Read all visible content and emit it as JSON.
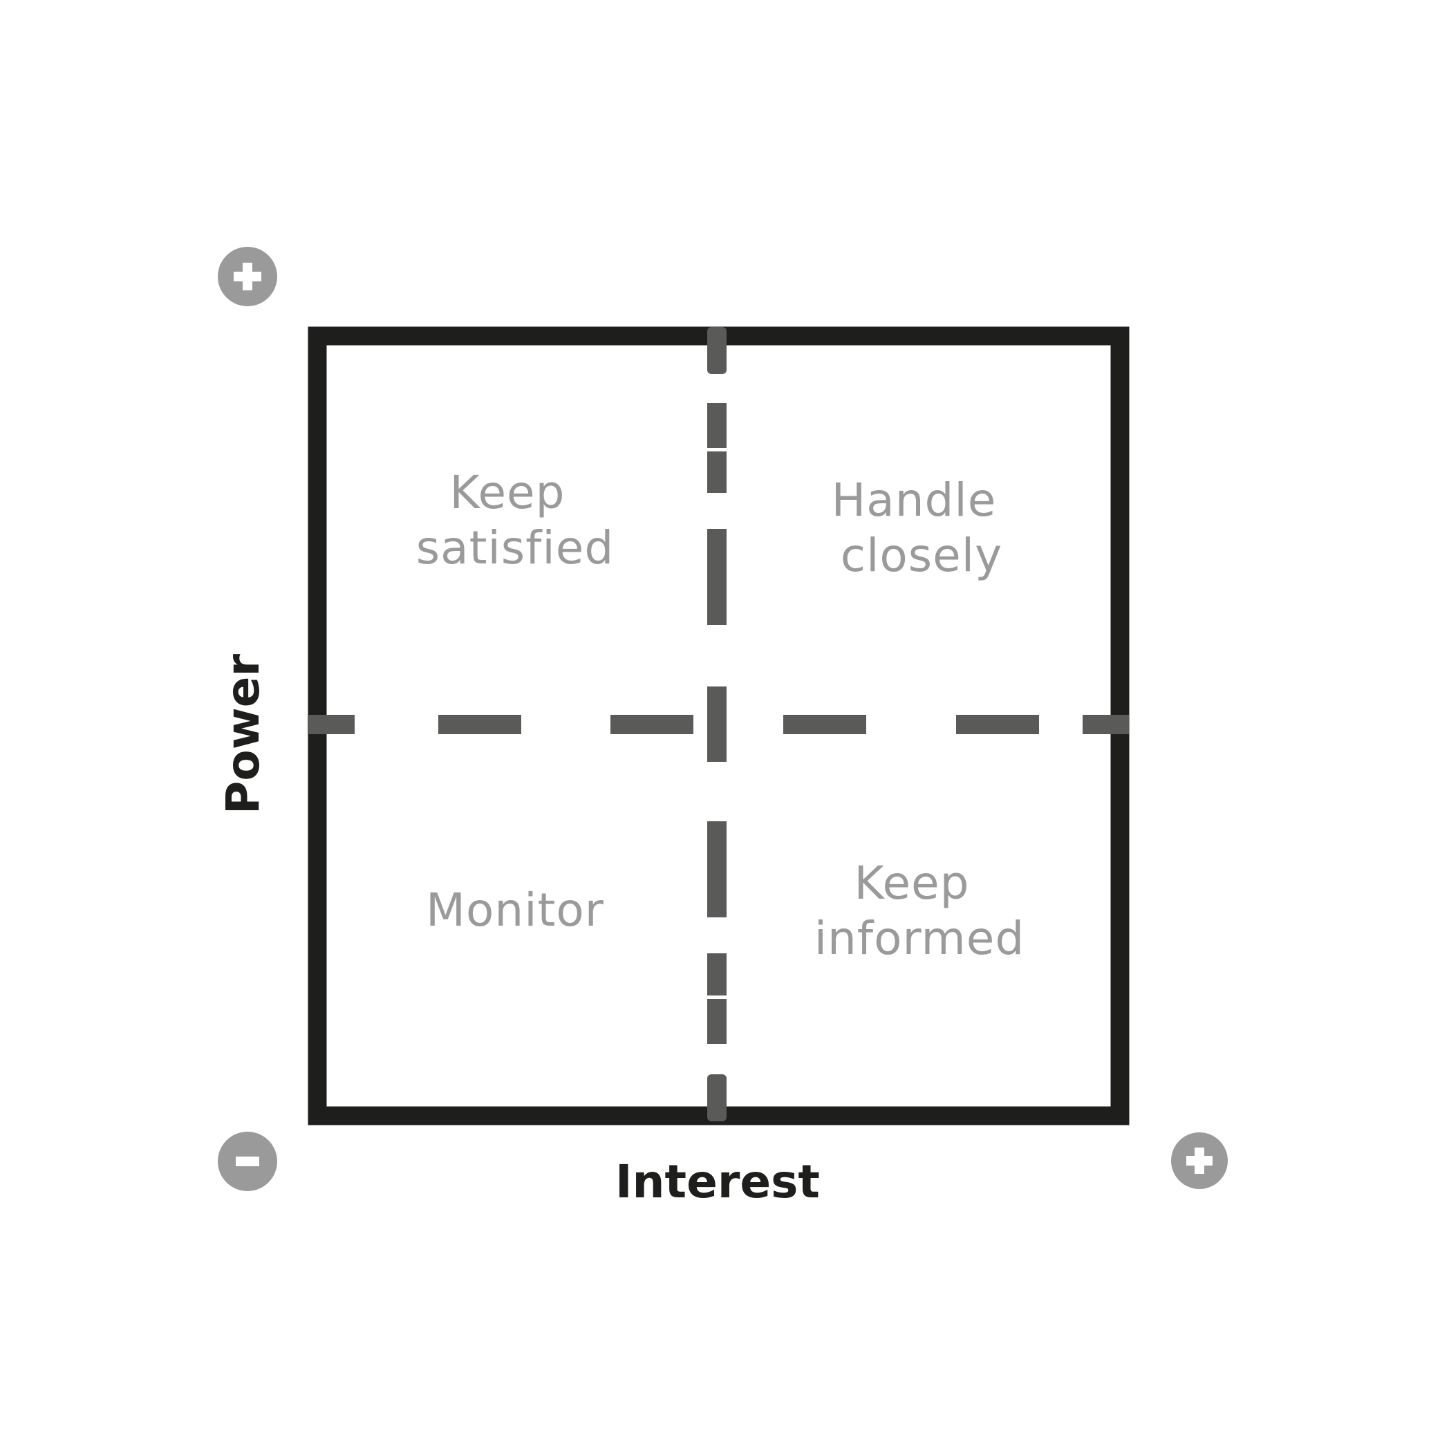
{
  "axes": {
    "y_label": "Power",
    "x_label": "Interest"
  },
  "quadrants": {
    "top_left": [
      "Keep",
      "satisfied"
    ],
    "top_right": [
      "Handle",
      "closely"
    ],
    "bottom_left": [
      "Monitor"
    ],
    "bottom_right": [
      "Keep",
      "informed"
    ]
  },
  "markers": {
    "y_high": "plus",
    "origin": "minus",
    "x_high": "plus"
  },
  "colors": {
    "frame": "#1e1e1d",
    "divider": "#5a5a59",
    "quadrant_text": "#9a9a9a",
    "marker": "#9a9a9a",
    "axis_text": "#1e1e1d"
  }
}
